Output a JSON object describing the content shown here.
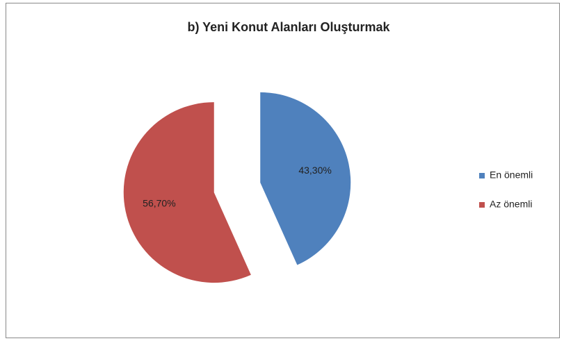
{
  "chart_data": {
    "type": "pie",
    "title": "b) Yeni Konut Alanları Oluşturmak",
    "categories": [
      "En önemli",
      "Az önemli"
    ],
    "values": [
      43.3,
      56.7
    ],
    "value_labels": [
      "43,30%",
      "56,70%"
    ],
    "colors": [
      "#4f81bd",
      "#c0504d"
    ],
    "legend": "right"
  }
}
